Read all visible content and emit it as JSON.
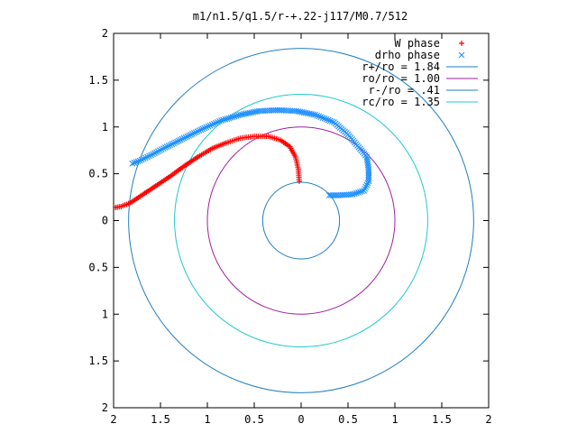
{
  "chart_data": {
    "type": "scatter",
    "title": "m1/n1.5/q1.5/r-+.22-j117/M0.7/512",
    "xlabel": "",
    "ylabel": "",
    "xlim": [
      2,
      -2
    ],
    "ylim": [
      -2,
      2
    ],
    "x_ticks": [
      2,
      1.5,
      1,
      0.5,
      0,
      0.5,
      1,
      1.5,
      2
    ],
    "y_ticks": [
      2,
      1.5,
      1,
      0.5,
      0,
      0.5,
      1,
      1.5,
      2
    ],
    "grid": false,
    "legend_position": "top-right",
    "series": [
      {
        "name": "W phase",
        "kind": "points",
        "marker": "+",
        "color": "#ff0000",
        "points": [
          [
            0.02,
            0.42
          ],
          [
            0.03,
            0.55
          ],
          [
            0.06,
            0.68
          ],
          [
            0.12,
            0.79
          ],
          [
            0.22,
            0.86
          ],
          [
            0.35,
            0.9
          ],
          [
            0.5,
            0.9
          ],
          [
            0.65,
            0.88
          ],
          [
            0.8,
            0.83
          ],
          [
            0.95,
            0.77
          ],
          [
            1.1,
            0.68
          ],
          [
            1.25,
            0.58
          ],
          [
            1.4,
            0.47
          ],
          [
            1.55,
            0.37
          ],
          [
            1.7,
            0.27
          ],
          [
            1.82,
            0.19
          ],
          [
            1.92,
            0.15
          ],
          [
            1.98,
            0.14
          ]
        ]
      },
      {
        "name": "drho phase",
        "kind": "points",
        "marker": "x",
        "color": "#1f90ff",
        "points": [
          [
            -0.3,
            0.27
          ],
          [
            -0.4,
            0.27
          ],
          [
            -0.55,
            0.28
          ],
          [
            -0.67,
            0.32
          ],
          [
            -0.72,
            0.42
          ],
          [
            -0.72,
            0.55
          ],
          [
            -0.7,
            0.68
          ],
          [
            -0.6,
            0.8
          ],
          [
            -0.5,
            0.92
          ],
          [
            -0.35,
            1.05
          ],
          [
            -0.15,
            1.13
          ],
          [
            0.05,
            1.17
          ],
          [
            0.25,
            1.18
          ],
          [
            0.45,
            1.17
          ],
          [
            0.65,
            1.13
          ],
          [
            0.85,
            1.07
          ],
          [
            1.05,
            0.98
          ],
          [
            1.25,
            0.88
          ],
          [
            1.45,
            0.78
          ],
          [
            1.6,
            0.7
          ],
          [
            1.72,
            0.64
          ],
          [
            1.8,
            0.61
          ]
        ]
      },
      {
        "name": "r+/ro = 1.84",
        "kind": "circle",
        "radius": 1.84,
        "color": "#1f7fc0"
      },
      {
        "name": "ro/ro = 1.00",
        "kind": "circle",
        "radius": 1.0,
        "color": "#a020a0"
      },
      {
        "name": "r-/ro = .41",
        "kind": "circle",
        "radius": 0.41,
        "color": "#1f7fc0"
      },
      {
        "name": "rc/ro = 1.35",
        "kind": "circle",
        "radius": 1.35,
        "color": "#20c8d0"
      }
    ]
  }
}
